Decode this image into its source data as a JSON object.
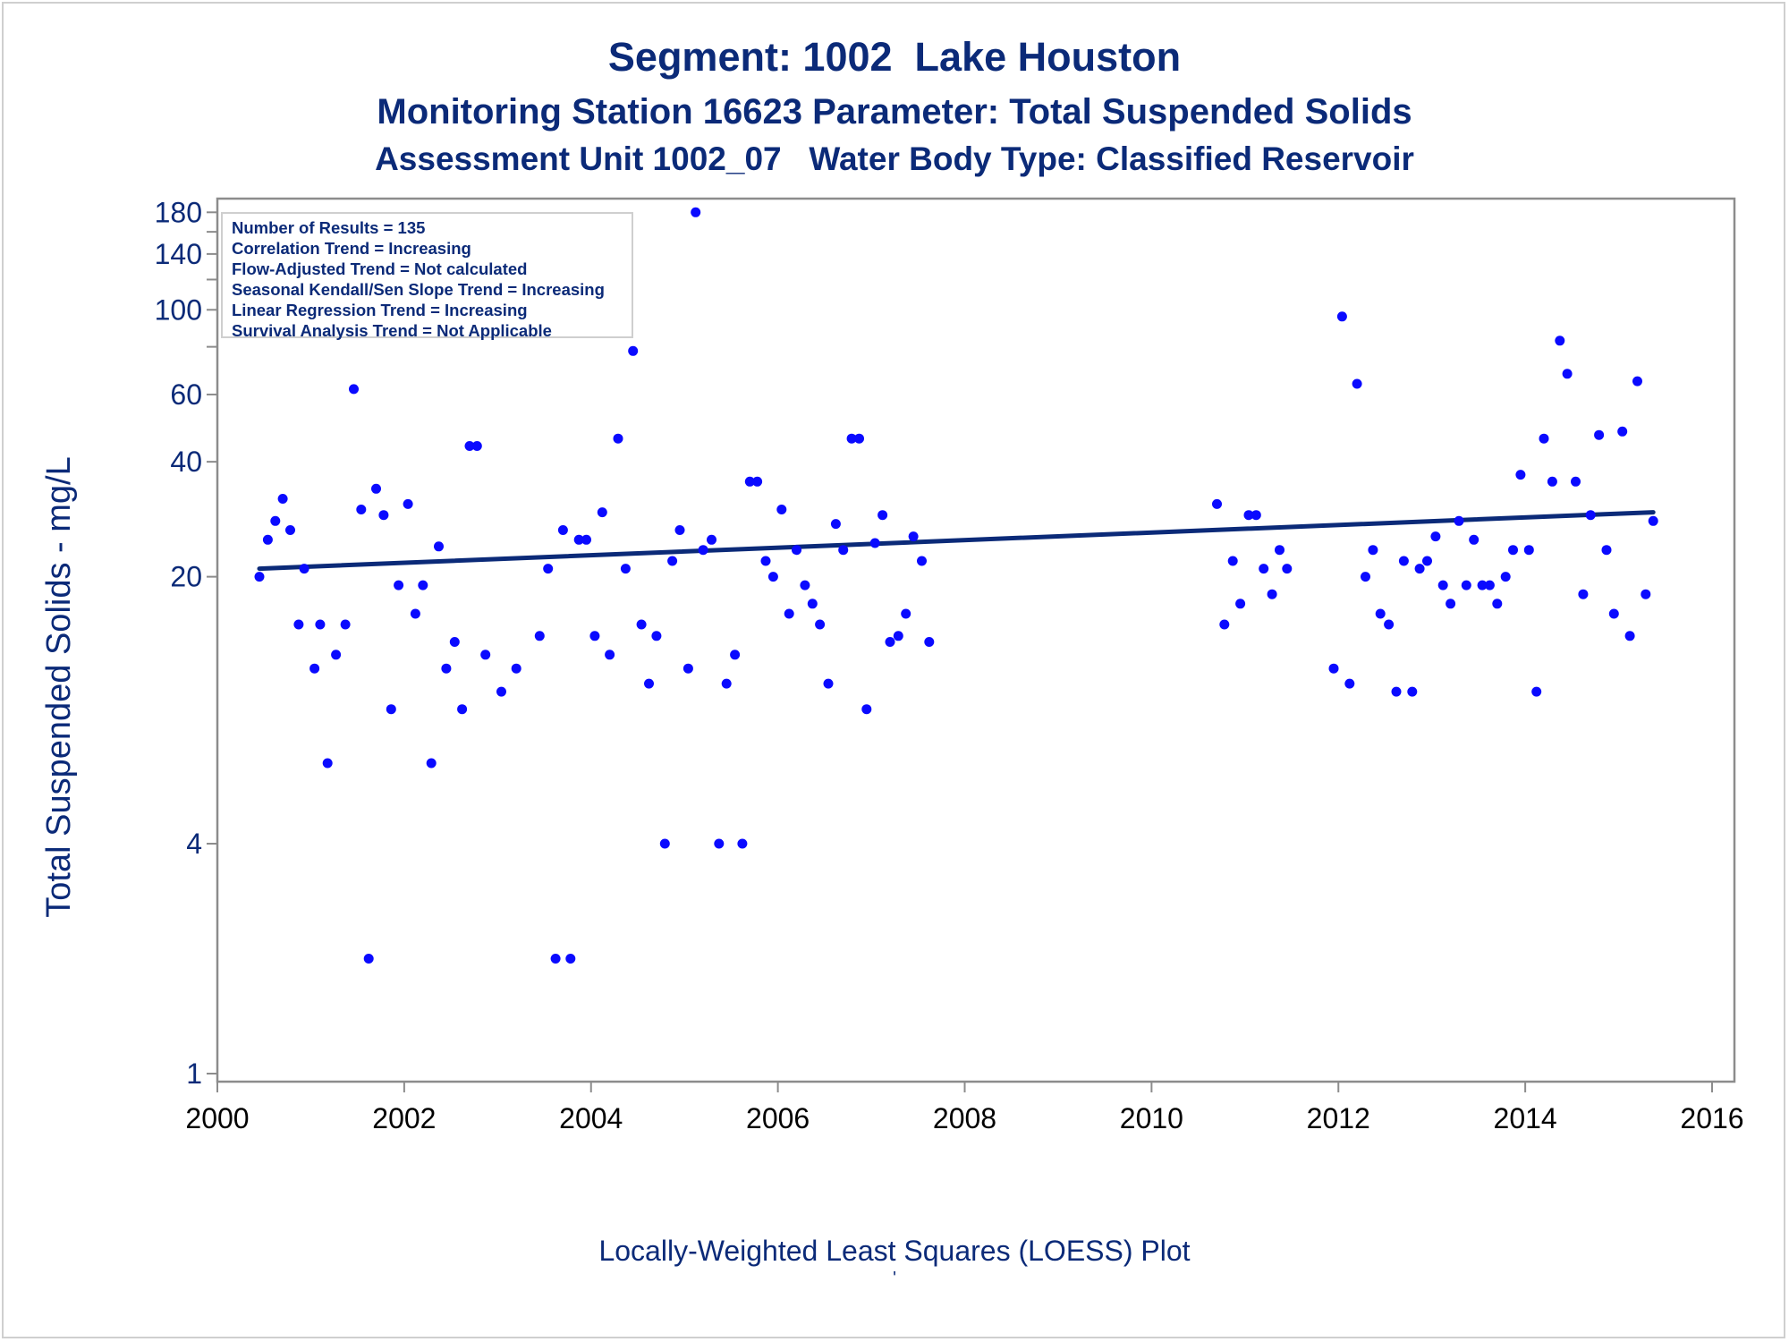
{
  "chart_data": {
    "type": "scatter",
    "title": "Segment: 1002  Lake Houston",
    "subtitles": [
      "Monitoring Station 16623 Parameter: Total Suspended Solids",
      "Assessment Unit 1002_07   Water Body Type: Classified Reservoir"
    ],
    "ylabel": "Total Suspended Solids - mg/L",
    "xlabel": "",
    "footnote": "Locally-Weighted Least Squares (LOESS) Plot",
    "footnote_mark": "'",
    "y_scale": "log",
    "xlim": [
      2000,
      2016
    ],
    "ylim": [
      1,
      195
    ],
    "x_ticks": [
      2000,
      2002,
      2004,
      2006,
      2008,
      2010,
      2012,
      2014,
      2016
    ],
    "y_ticks_labeled": [
      1,
      4,
      20,
      40,
      60,
      100,
      140,
      180
    ],
    "y_ticks_minor": [
      80,
      120,
      160
    ],
    "grid": false,
    "colors": {
      "points": "#0a0aff",
      "trend_line": "#0b2a78",
      "text": "#0b2a78",
      "axis": "#8c8c8c"
    },
    "stats_box": {
      "position": "top-left",
      "lines": [
        "Number of Results = 135",
        "Correlation Trend = Increasing",
        "Flow-Adjusted Trend = Not calculated",
        "Seasonal Kendall/Sen Slope Trend = Increasing",
        "Linear Regression Trend = Increasing",
        "Survival Analysis Trend = Not Applicable"
      ]
    },
    "series": [
      {
        "type": "scatter",
        "points": [
          [
            2000.45,
            20
          ],
          [
            2000.54,
            25
          ],
          [
            2000.62,
            28
          ],
          [
            2000.7,
            32
          ],
          [
            2000.78,
            26.5
          ],
          [
            2000.87,
            15
          ],
          [
            2000.93,
            21
          ],
          [
            2001.04,
            11.5
          ],
          [
            2001.1,
            15
          ],
          [
            2001.18,
            6.5
          ],
          [
            2001.27,
            12.5
          ],
          [
            2001.37,
            15
          ],
          [
            2001.46,
            62
          ],
          [
            2001.54,
            30
          ],
          [
            2001.62,
            2
          ],
          [
            2001.7,
            34
          ],
          [
            2001.78,
            29
          ],
          [
            2001.86,
            9
          ],
          [
            2001.94,
            19
          ],
          [
            2002.04,
            31
          ],
          [
            2002.12,
            16
          ],
          [
            2002.2,
            19
          ],
          [
            2002.29,
            6.5
          ],
          [
            2002.37,
            24
          ],
          [
            2002.45,
            11.5
          ],
          [
            2002.54,
            13.5
          ],
          [
            2002.62,
            9
          ],
          [
            2002.7,
            44
          ],
          [
            2002.78,
            44
          ],
          [
            2002.87,
            12.5
          ],
          [
            2003.04,
            10
          ],
          [
            2003.2,
            11.5
          ],
          [
            2003.45,
            14
          ],
          [
            2003.54,
            21
          ],
          [
            2003.62,
            2
          ],
          [
            2003.7,
            26.5
          ],
          [
            2003.78,
            2
          ],
          [
            2003.87,
            25
          ],
          [
            2003.95,
            25
          ],
          [
            2004.04,
            14
          ],
          [
            2004.12,
            29.5
          ],
          [
            2004.2,
            12.5
          ],
          [
            2004.29,
            46
          ],
          [
            2004.37,
            21
          ],
          [
            2004.45,
            78
          ],
          [
            2004.54,
            15
          ],
          [
            2004.62,
            10.5
          ],
          [
            2004.7,
            14
          ],
          [
            2004.79,
            4
          ],
          [
            2004.87,
            22
          ],
          [
            2004.95,
            26.5
          ],
          [
            2005.04,
            11.5
          ],
          [
            2005.12,
            180
          ],
          [
            2005.2,
            23.5
          ],
          [
            2005.29,
            25
          ],
          [
            2005.37,
            4
          ],
          [
            2005.45,
            10.5
          ],
          [
            2005.54,
            12.5
          ],
          [
            2005.62,
            4
          ],
          [
            2005.7,
            35.5
          ],
          [
            2005.78,
            35.5
          ],
          [
            2005.87,
            22
          ],
          [
            2005.95,
            20
          ],
          [
            2006.04,
            30
          ],
          [
            2006.12,
            16
          ],
          [
            2006.2,
            23.5
          ],
          [
            2006.29,
            19
          ],
          [
            2006.37,
            17
          ],
          [
            2006.45,
            15
          ],
          [
            2006.54,
            10.5
          ],
          [
            2006.62,
            27.5
          ],
          [
            2006.7,
            23.5
          ],
          [
            2006.79,
            46
          ],
          [
            2006.87,
            46
          ],
          [
            2006.95,
            9
          ],
          [
            2007.04,
            24.5
          ],
          [
            2007.12,
            29
          ],
          [
            2007.2,
            13.5
          ],
          [
            2007.29,
            14
          ],
          [
            2007.37,
            16
          ],
          [
            2007.45,
            25.5
          ],
          [
            2007.54,
            22
          ],
          [
            2007.62,
            13.5
          ],
          [
            2010.7,
            31
          ],
          [
            2010.78,
            15
          ],
          [
            2010.87,
            22
          ],
          [
            2010.95,
            17
          ],
          [
            2011.04,
            29
          ],
          [
            2011.12,
            29
          ],
          [
            2011.2,
            21
          ],
          [
            2011.29,
            18
          ],
          [
            2011.37,
            23.5
          ],
          [
            2011.45,
            21
          ],
          [
            2011.95,
            11.5
          ],
          [
            2012.04,
            96
          ],
          [
            2012.12,
            10.5
          ],
          [
            2012.2,
            64
          ],
          [
            2012.29,
            20
          ],
          [
            2012.37,
            23.5
          ],
          [
            2012.45,
            16
          ],
          [
            2012.54,
            15
          ],
          [
            2012.62,
            10
          ],
          [
            2012.7,
            22
          ],
          [
            2012.79,
            10
          ],
          [
            2012.87,
            21
          ],
          [
            2012.95,
            22
          ],
          [
            2013.04,
            25.5
          ],
          [
            2013.12,
            19
          ],
          [
            2013.2,
            17
          ],
          [
            2013.29,
            28
          ],
          [
            2013.37,
            19
          ],
          [
            2013.45,
            25
          ],
          [
            2013.54,
            19
          ],
          [
            2013.62,
            19
          ],
          [
            2013.7,
            17
          ],
          [
            2013.79,
            20
          ],
          [
            2013.87,
            23.5
          ],
          [
            2013.95,
            37
          ],
          [
            2014.04,
            23.5
          ],
          [
            2014.12,
            10
          ],
          [
            2014.2,
            46
          ],
          [
            2014.29,
            35.5
          ],
          [
            2014.37,
            83
          ],
          [
            2014.45,
            68
          ],
          [
            2014.54,
            35.5
          ],
          [
            2014.62,
            18
          ],
          [
            2014.7,
            29
          ],
          [
            2014.79,
            47
          ],
          [
            2014.87,
            23.5
          ],
          [
            2014.95,
            16
          ],
          [
            2015.04,
            48
          ],
          [
            2015.12,
            14
          ],
          [
            2015.2,
            65
          ],
          [
            2015.29,
            18
          ],
          [
            2015.37,
            28
          ]
        ]
      },
      {
        "type": "line",
        "name": "",
        "points": [
          [
            2000.45,
            21
          ],
          [
            2015.37,
            29.5
          ]
        ]
      }
    ]
  }
}
